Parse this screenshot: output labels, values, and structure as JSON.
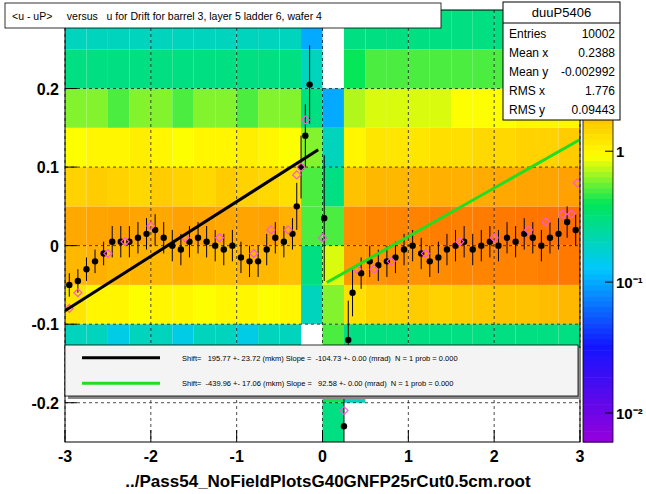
{
  "chart_data": {
    "type": "scatter",
    "title": "<u - uP>     versus   u for Drift for barrel 3, layer 5 ladder 6, wafer 4",
    "caption": "../Pass54_NoFieldPlotsG40GNFP25rCut0.5cm.root",
    "xlim": [
      -3,
      3
    ],
    "ylim": [
      -0.25,
      0.3
    ],
    "xticks": [
      -3,
      -2,
      -1,
      0,
      1,
      2,
      3
    ],
    "yticks": [
      -0.2,
      -0.1,
      0,
      0.1,
      0.2
    ],
    "grid": true,
    "legend": "bottom",
    "series": [
      {
        "type": "scatter",
        "color": "#000000",
        "marker": "circle",
        "x": [
          -2.95,
          -2.85,
          -2.75,
          -2.65,
          -2.55,
          -2.45,
          -2.35,
          -2.25,
          -2.15,
          -2.05,
          -1.95,
          -1.85,
          -1.75,
          -1.65,
          -1.55,
          -1.45,
          -1.35,
          -1.25,
          -1.15,
          -1.05,
          -0.95,
          -0.85,
          -0.75,
          -0.65,
          -0.55,
          -0.45,
          -0.35,
          -0.3,
          -0.25,
          -0.2,
          -0.15,
          0.02,
          0.25,
          0.3,
          0.35,
          0.45,
          0.55,
          0.65,
          0.75,
          0.85,
          0.95,
          1.05,
          1.15,
          1.25,
          1.35,
          1.45,
          1.55,
          1.65,
          1.75,
          1.85,
          1.95,
          2.05,
          2.15,
          2.25,
          2.35,
          2.45,
          2.55,
          2.65,
          2.75,
          2.85,
          2.95
        ],
        "values": [
          -0.05,
          -0.045,
          -0.03,
          -0.02,
          -0.01,
          0.005,
          0.005,
          0.005,
          0.01,
          0.015,
          0.02,
          0.01,
          0,
          -0.005,
          0.005,
          0.01,
          0.005,
          0,
          -0.005,
          0,
          -0.015,
          -0.02,
          -0.02,
          -0.005,
          0.01,
          0.005,
          0.015,
          0.05,
          0.1,
          0.14,
          0.205,
          0.035,
          -0.23,
          -0.12,
          -0.06,
          -0.035,
          -0.02,
          -0.025,
          -0.02,
          -0.015,
          -0.005,
          0,
          -0.01,
          -0.02,
          -0.015,
          -0.005,
          0,
          0.005,
          -0.005,
          0,
          0.005,
          0,
          0.01,
          0.005,
          0.015,
          0.01,
          0,
          0.01,
          0.015,
          0.03,
          0.02
        ],
        "errors": [
          0.015,
          0.015,
          0.015,
          0.015,
          0.015,
          0.02,
          0.02,
          0.02,
          0.02,
          0.02,
          0.02,
          0.02,
          0.02,
          0.02,
          0.02,
          0.02,
          0.02,
          0.02,
          0.02,
          0.02,
          0.02,
          0.02,
          0.02,
          0.02,
          0.02,
          0.02,
          0.02,
          0.03,
          0.04,
          0.04,
          0.05,
          0.08,
          0.1,
          0.05,
          0.03,
          0.02,
          0.02,
          0.02,
          0.02,
          0.02,
          0.02,
          0.02,
          0.02,
          0.02,
          0.02,
          0.02,
          0.02,
          0.02,
          0.02,
          0.02,
          0.02,
          0.02,
          0.02,
          0.02,
          0.02,
          0.02,
          0.02,
          0.02,
          0.02,
          0.02,
          0.02
        ]
      },
      {
        "type": "scatter",
        "color": "#ff55dd",
        "marker": "diamond",
        "x": [
          -2.95,
          -2.85,
          -2.5,
          -2.3,
          -2.0,
          -1.6,
          -1.2,
          -0.8,
          -0.6,
          -0.4,
          -0.3,
          -0.25,
          -0.2,
          0.0,
          0.25,
          0.3,
          0.4,
          0.6,
          0.8,
          1.2,
          1.6,
          2.0,
          2.4,
          2.6,
          2.8,
          2.9,
          2.97
        ],
        "values": [
          -0.08,
          -0.06,
          -0.01,
          0.005,
          0.025,
          0.01,
          0.01,
          -0.01,
          0.02,
          0.02,
          0.09,
          0.1,
          0.16,
          0.01,
          -0.21,
          -0.14,
          -0.03,
          -0.03,
          -0.02,
          -0.01,
          0.005,
          0.01,
          0.02,
          0.03,
          0.04,
          0.04,
          0.08
        ]
      },
      {
        "type": "line",
        "name": "Shift=   195.77 +- 23.72 (mkm) Slope =  -104.73 +- 0.00 (mrad)  N = 1 prob = 0.000",
        "color": "#000000",
        "x": [
          -3,
          -0.05
        ],
        "values": [
          -0.083,
          0.122
        ]
      },
      {
        "type": "line",
        "name": "Shift=  -439.96 +- 17.06 (mkm) Slope =   92.58 +- 0.00 (mrad)  N = 1 prob = 0.000",
        "color": "#22dd22",
        "x": [
          0.05,
          3
        ],
        "values": [
          -0.047,
          0.135
        ]
      }
    ],
    "heatmap": {
      "x_edges": [
        -3,
        -2.75,
        -2.5,
        -2.25,
        -2,
        -1.75,
        -1.5,
        -1.25,
        -1,
        -0.75,
        -0.5,
        -0.25,
        0,
        0.25,
        0.5,
        0.75,
        1,
        1.25,
        1.5,
        1.75,
        2,
        2.25,
        2.5,
        2.75,
        3
      ],
      "y_edges": [
        -0.25,
        -0.2,
        -0.15,
        -0.1,
        -0.05,
        0,
        0.05,
        0.1,
        0.15,
        0.2,
        0.25,
        0.3
      ],
      "cells": [
        [
          0,
          0,
          0,
          0,
          0,
          0,
          0,
          0,
          0,
          0,
          0,
          0,
          0.3,
          0,
          0,
          0,
          0,
          0,
          0,
          0,
          0,
          0,
          0,
          0
        ],
        [
          0,
          0,
          0,
          0,
          0,
          0,
          0,
          0,
          0,
          0,
          0,
          0,
          0.4,
          0.2,
          0,
          0,
          0,
          0,
          0,
          0,
          0,
          0,
          0,
          0
        ],
        [
          0.2,
          0.2,
          0.15,
          0.2,
          0.2,
          0.15,
          0.2,
          0.2,
          0.15,
          0.2,
          0.2,
          0,
          0.5,
          0.3,
          0.3,
          0.3,
          0.3,
          0.3,
          0.3,
          0.3,
          0.3,
          0.3,
          0.3,
          0.3
        ],
        [
          1.2,
          1.0,
          1.0,
          0.9,
          1.0,
          1.0,
          0.9,
          1.0,
          1.0,
          0.9,
          1.0,
          0.2,
          0.6,
          1.3,
          1.5,
          1.5,
          1.6,
          1.5,
          1.6,
          1.7,
          1.8,
          1.8,
          1.9,
          2.0
        ],
        [
          2.0,
          2.2,
          2.0,
          2.1,
          2.0,
          2.2,
          2.0,
          1.9,
          2.1,
          2.0,
          1.8,
          0.3,
          0.8,
          2.8,
          3.0,
          3.2,
          3.0,
          3.3,
          3.4,
          3.5,
          3.6,
          3.6,
          3.8,
          4.0
        ],
        [
          2.4,
          2.5,
          2.6,
          2.5,
          2.4,
          2.6,
          2.5,
          2.4,
          2.5,
          2.6,
          2.2,
          0.5,
          0.5,
          3.2,
          3.5,
          3.5,
          3.6,
          3.8,
          3.7,
          3.9,
          4.0,
          4.2,
          4.3,
          4.5
        ],
        [
          1.5,
          1.6,
          1.5,
          1.4,
          1.6,
          1.5,
          1.4,
          1.6,
          1.5,
          1.4,
          1.3,
          0.5,
          0.3,
          1.8,
          2.0,
          2.0,
          2.1,
          2.2,
          2.2,
          2.3,
          2.4,
          2.5,
          2.5,
          2.6
        ],
        [
          0.9,
          1.0,
          1.0,
          1.1,
          1.0,
          0.9,
          1.0,
          1.0,
          1.1,
          1.0,
          0.9,
          0.6,
          0.2,
          1.0,
          1.2,
          1.2,
          1.2,
          1.3,
          1.3,
          1.4,
          1.4,
          1.5,
          1.5,
          1.6
        ],
        [
          0.6,
          0.6,
          0.5,
          0.6,
          0.6,
          0.5,
          0.6,
          0.6,
          0.5,
          0.6,
          0.6,
          0.3,
          0.1,
          0.7,
          0.8,
          0.8,
          0.8,
          0.8,
          0.9,
          0.9,
          0.9,
          1.0,
          1.0,
          1.0
        ],
        [
          0.3,
          0.3,
          0.3,
          0.3,
          0.3,
          0.3,
          0.3,
          0.3,
          0.3,
          0.3,
          0.3,
          0.2,
          0,
          0.4,
          0.5,
          0.5,
          0.5,
          0.5,
          0.5,
          0.5,
          0.5,
          0.5,
          0.5,
          0.5
        ],
        [
          0.2,
          0.2,
          0.2,
          0.2,
          0.2,
          0.2,
          0.2,
          0.2,
          0.2,
          0.2,
          0.2,
          0.1,
          0,
          0.3,
          0.3,
          0.3,
          0.3,
          0.3,
          0.3,
          0.3,
          0.3,
          0.3,
          0.3,
          0.3
        ]
      ]
    },
    "colorbar": {
      "range": [
        0.006,
        12
      ],
      "log": true,
      "ticks": [
        {
          "value": 1,
          "label": "1"
        },
        {
          "value": 0.1,
          "label": "10⁻¹"
        },
        {
          "value": 0.01,
          "label": "10⁻²"
        }
      ]
    },
    "stats": {
      "title": "duuP5406",
      "rows": [
        {
          "label": "Entries",
          "value": 10002
        },
        {
          "label": "Mean x",
          "value": 0.2388
        },
        {
          "label": "Mean y",
          "value": -0.002992
        },
        {
          "label": "RMS x",
          "value": 1.776
        },
        {
          "label": "RMS y",
          "value": 0.09443
        }
      ]
    }
  }
}
